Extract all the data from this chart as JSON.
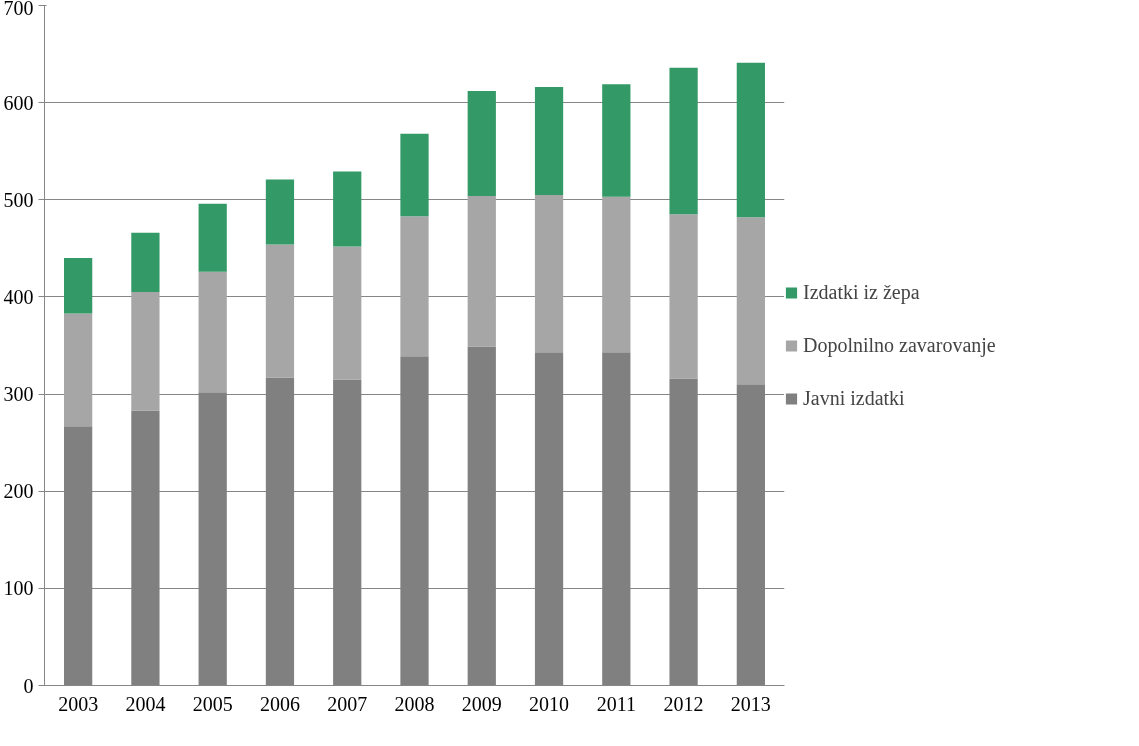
{
  "chart_data": {
    "type": "bar",
    "stacked": true,
    "categories": [
      "2003",
      "2004",
      "2005",
      "2006",
      "2007",
      "2008",
      "2009",
      "2010",
      "2011",
      "2012",
      "2013"
    ],
    "series": [
      {
        "name": "Javni izdatki",
        "color": "#808080",
        "values": [
          267,
          283,
          302,
          317,
          315,
          339,
          349,
          343,
          343,
          316,
          310
        ]
      },
      {
        "name": "Dopolnilno zavarovanje",
        "color": "#a6a6a6",
        "values": [
          116,
          122,
          124,
          137,
          137,
          144,
          155,
          162,
          160,
          169,
          172
        ]
      },
      {
        "name": "Izdatki iz žepa",
        "color": "#339966",
        "values": [
          57,
          61,
          70,
          67,
          77,
          85,
          108,
          111,
          116,
          151,
          159
        ]
      }
    ],
    "ylim": [
      0,
      700
    ],
    "yticks": [
      0,
      100,
      200,
      300,
      400,
      500,
      600,
      700
    ],
    "grid": "y",
    "legend": "right"
  }
}
